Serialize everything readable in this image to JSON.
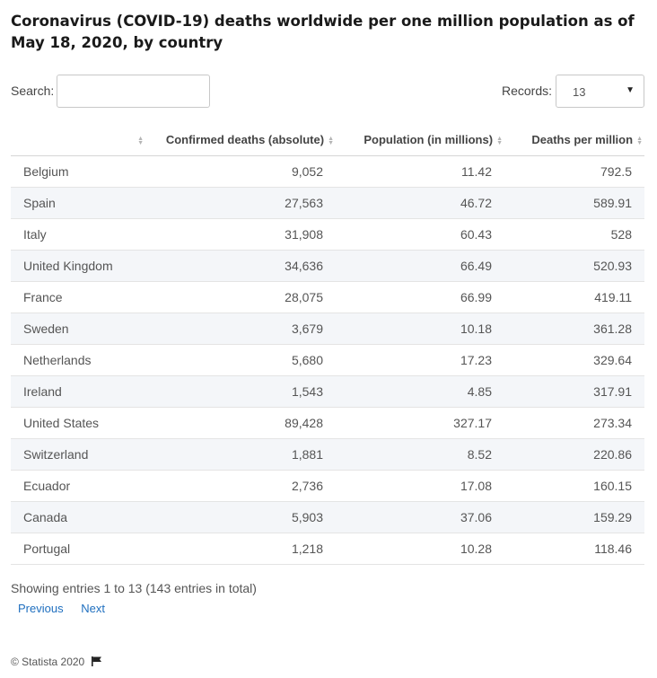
{
  "title": "Coronavirus (COVID-19) deaths worldwide per one million population as of May 18, 2020, by country",
  "search": {
    "label": "Search:",
    "value": ""
  },
  "records": {
    "label": "Records:",
    "value": "13"
  },
  "chart_data": {
    "type": "table",
    "columns": [
      "",
      "Confirmed deaths (absolute)",
      "Population (in millions)",
      "Deaths per million"
    ],
    "rows": [
      [
        "Belgium",
        "9,052",
        "11.42",
        "792.5"
      ],
      [
        "Spain",
        "27,563",
        "46.72",
        "589.91"
      ],
      [
        "Italy",
        "31,908",
        "60.43",
        "528"
      ],
      [
        "United Kingdom",
        "34,636",
        "66.49",
        "520.93"
      ],
      [
        "France",
        "28,075",
        "66.99",
        "419.11"
      ],
      [
        "Sweden",
        "3,679",
        "10.18",
        "361.28"
      ],
      [
        "Netherlands",
        "5,680",
        "17.23",
        "329.64"
      ],
      [
        "Ireland",
        "1,543",
        "4.85",
        "317.91"
      ],
      [
        "United States",
        "89,428",
        "327.17",
        "273.34"
      ],
      [
        "Switzerland",
        "1,881",
        "8.52",
        "220.86"
      ],
      [
        "Ecuador",
        "2,736",
        "17.08",
        "160.15"
      ],
      [
        "Canada",
        "5,903",
        "37.06",
        "159.29"
      ],
      [
        "Portugal",
        "1,218",
        "10.28",
        "118.46"
      ]
    ]
  },
  "info": "Showing entries 1 to 13 (143 entries in total)",
  "pager": {
    "previous": "Previous",
    "next": "Next"
  },
  "footer": {
    "copyright": "© Statista 2020"
  },
  "colors": {
    "link": "#1f6fbf",
    "stripe": "#f4f6f9",
    "title": "#1a1a1a"
  }
}
